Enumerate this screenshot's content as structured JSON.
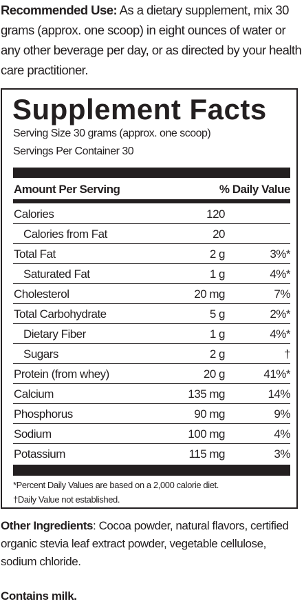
{
  "recommended_use": {
    "label": "Recommended Use:",
    "text": " As a dietary supplement, mix 30 grams (approx. one scoop) in eight ounces of water or any other beverage per day, or as directed by your health care practitioner."
  },
  "facts": {
    "title": "Supplement Facts",
    "serving_size": "Serving Size 30 grams (approx. one scoop)",
    "servings_per_container": "Servings Per Container 30",
    "header_amount": "Amount Per Serving",
    "header_dv": "% Daily Value",
    "rows": [
      {
        "name": "Calories",
        "amount": "120",
        "dv": ""
      },
      {
        "name": "Calories from Fat",
        "amount": "20",
        "dv": ""
      },
      {
        "name": "Total Fat",
        "amount": "2 g",
        "dv": "3%*"
      },
      {
        "name": "Saturated Fat",
        "amount": "1 g",
        "dv": "4%*"
      },
      {
        "name": "Cholesterol",
        "amount": "20 mg",
        "dv": "7%"
      },
      {
        "name": "Total Carbohydrate",
        "amount": "5 g",
        "dv": "2%*"
      },
      {
        "name": "Dietary Fiber",
        "amount": "1 g",
        "dv": "4%*"
      },
      {
        "name": "Sugars",
        "amount": "2 g",
        "dv": "†"
      },
      {
        "name": "Protein (from whey)",
        "amount": "20 g",
        "dv": "41%*"
      },
      {
        "name": "Calcium",
        "amount": "135 mg",
        "dv": "14%"
      },
      {
        "name": "Phosphorus",
        "amount": "90 mg",
        "dv": "9%"
      },
      {
        "name": "Sodium",
        "amount": "100 mg",
        "dv": "4%"
      },
      {
        "name": "Potassium",
        "amount": "115 mg",
        "dv": "3%"
      }
    ],
    "footnote_1": "*Percent Daily Values are based on a 2,000 calorie diet.",
    "footnote_2": "†Daily Value not established."
  },
  "other_ingredients": {
    "label": "Other Ingredients",
    "text": ": Cocoa powder, natural flavors, certified organic stevia leaf extract powder, vegetable cellulose, sodium chloride."
  },
  "contains": "Contains milk."
}
